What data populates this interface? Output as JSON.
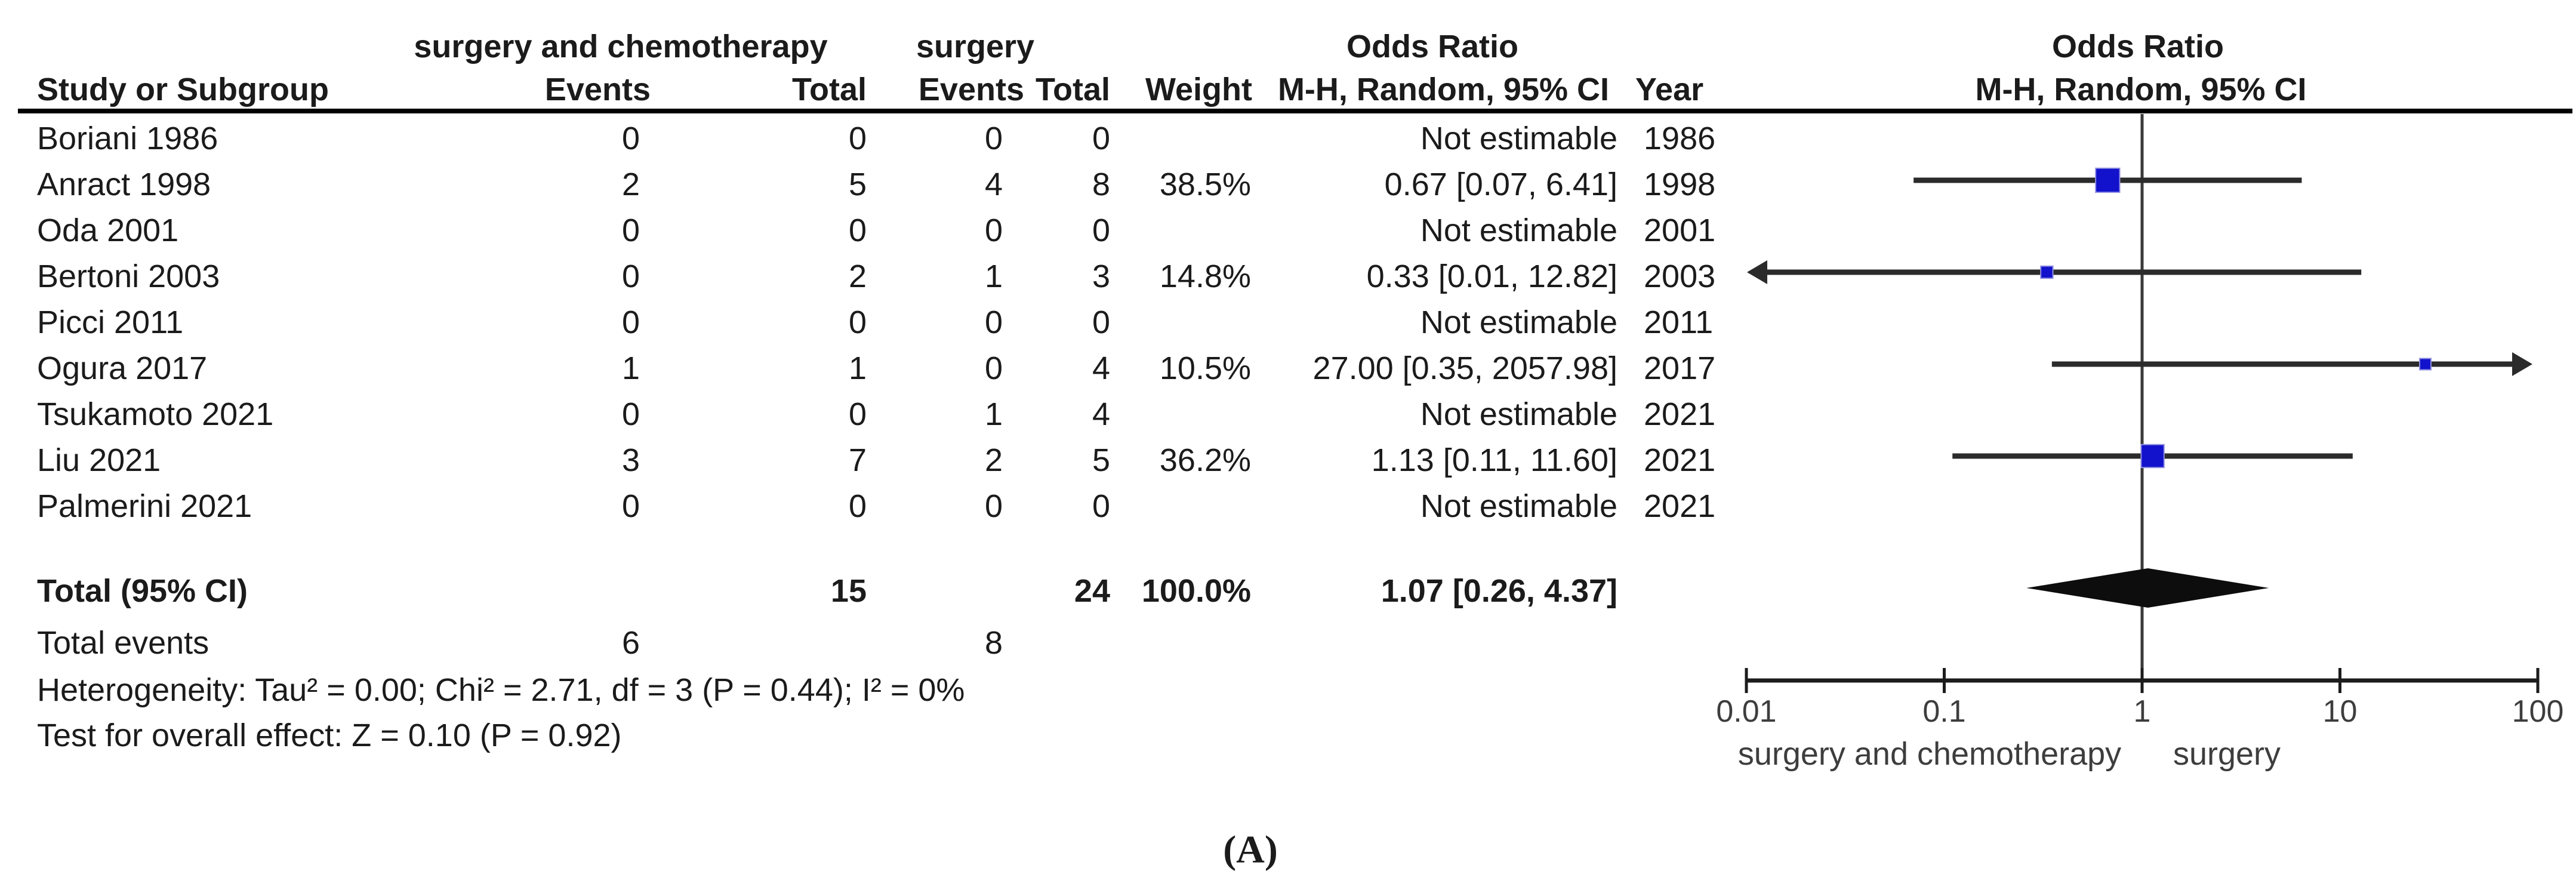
{
  "table": {
    "group1_label": "surgery and chemotherapy",
    "group2_label": "surgery",
    "or_col_label": "Odds Ratio",
    "plot_col_label": "Odds Ratio",
    "subheaders": {
      "study": "Study or Subgroup",
      "events1": "Events",
      "total1": "Total",
      "events2": "Events",
      "total2": "Total",
      "weight": "Weight",
      "mh": "M-H, Random, 95% CI",
      "year": "Year",
      "mh_plot": "M-H, Random, 95% CI"
    },
    "rows": [
      {
        "study": "Boriani 1986",
        "e1": "0",
        "t1": "0",
        "e2": "0",
        "t2": "0",
        "weight": "",
        "or": "Not estimable",
        "year": "1986"
      },
      {
        "study": "Anract 1998",
        "e1": "2",
        "t1": "5",
        "e2": "4",
        "t2": "8",
        "weight": "38.5%",
        "or": "0.67 [0.07, 6.41]",
        "year": "1998"
      },
      {
        "study": "Oda 2001",
        "e1": "0",
        "t1": "0",
        "e2": "0",
        "t2": "0",
        "weight": "",
        "or": "Not estimable",
        "year": "2001"
      },
      {
        "study": "Bertoni 2003",
        "e1": "0",
        "t1": "2",
        "e2": "1",
        "t2": "3",
        "weight": "14.8%",
        "or": "0.33 [0.01, 12.82]",
        "year": "2003"
      },
      {
        "study": "Picci 2011",
        "e1": "0",
        "t1": "0",
        "e2": "0",
        "t2": "0",
        "weight": "",
        "or": "Not estimable",
        "year": "2011"
      },
      {
        "study": "Ogura 2017",
        "e1": "1",
        "t1": "1",
        "e2": "0",
        "t2": "4",
        "weight": "10.5%",
        "or": "27.00 [0.35, 2057.98]",
        "year": "2017"
      },
      {
        "study": "Tsukamoto 2021",
        "e1": "0",
        "t1": "0",
        "e2": "1",
        "t2": "4",
        "weight": "",
        "or": "Not estimable",
        "year": "2021"
      },
      {
        "study": "Liu 2021",
        "e1": "3",
        "t1": "7",
        "e2": "2",
        "t2": "5",
        "weight": "36.2%",
        "or": "1.13 [0.11, 11.60]",
        "year": "2021"
      },
      {
        "study": "Palmerini 2021",
        "e1": "0",
        "t1": "0",
        "e2": "0",
        "t2": "0",
        "weight": "",
        "or": "Not estimable",
        "year": "2021"
      }
    ],
    "total": {
      "label": "Total (95% CI)",
      "t1": "15",
      "t2": "24",
      "weight": "100.0%",
      "or": "1.07 [0.26, 4.37]"
    },
    "total_events": {
      "label": "Total events",
      "e1": "6",
      "e2": "8"
    },
    "heterogeneity": "Heterogeneity: Tau² = 0.00; Chi² = 2.71, df = 3 (P = 0.44); I² = 0%",
    "overall_effect": "Test for overall effect: Z = 0.10 (P = 0.92)"
  },
  "chart_data": {
    "type": "forest",
    "effect_measure": "Odds Ratio",
    "method": "M-H, Random, 95% CI",
    "x_scale": "log10",
    "x_ticks": [
      0.01,
      0.1,
      1,
      10,
      100
    ],
    "x_tick_labels": [
      "0.01",
      "0.1",
      "1",
      "10",
      "100"
    ],
    "x_range": [
      0.01,
      100
    ],
    "null_line": 1,
    "studies": [
      {
        "row": 1,
        "name": "Anract 1998",
        "or": 0.67,
        "low": 0.07,
        "high": 6.41,
        "weight": 38.5,
        "clip_low": false,
        "clip_high": false
      },
      {
        "row": 3,
        "name": "Bertoni 2003",
        "or": 0.33,
        "low": 0.01,
        "high": 12.82,
        "weight": 14.8,
        "clip_low": true,
        "clip_high": false
      },
      {
        "row": 5,
        "name": "Ogura 2017",
        "or": 27.0,
        "low": 0.35,
        "high": 2057.98,
        "weight": 10.5,
        "clip_low": false,
        "clip_high": true
      },
      {
        "row": 7,
        "name": "Liu 2021",
        "or": 1.13,
        "low": 0.11,
        "high": 11.6,
        "weight": 36.2,
        "clip_low": false,
        "clip_high": false
      }
    ],
    "total": {
      "or": 1.07,
      "low": 0.26,
      "high": 4.37
    },
    "footer_left": "surgery and chemotherapy",
    "footer_right": "surgery"
  },
  "colors": {
    "square": "#1212cc",
    "square_border": "#8f8fe0",
    "ci_line": "#2b2b2b",
    "diamond": "#0d0d0d",
    "null_line": "#3a3a3a",
    "axis": "#1c1c1c",
    "muted_text": "#3d3d3d"
  },
  "caption": "(A)"
}
